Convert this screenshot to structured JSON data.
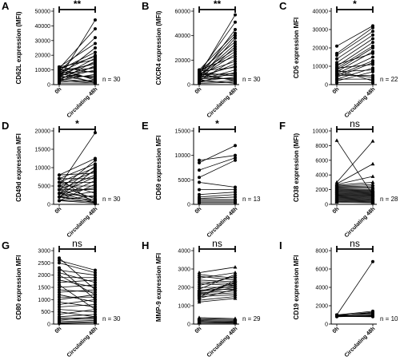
{
  "chart_data": [
    {
      "panel": "A",
      "type": "line",
      "ylabel": "CD62L expression (MFI)",
      "ylim": [
        0,
        50000
      ],
      "yticks": [
        0,
        10000,
        20000,
        30000,
        40000,
        50000
      ],
      "categories": [
        "0h",
        "Circulating 48h"
      ],
      "significance": "**",
      "n": "n = 30",
      "marker": "circle",
      "pairs": [
        [
          4000,
          44000
        ],
        [
          11000,
          38000
        ],
        [
          9000,
          32000
        ],
        [
          12000,
          28000
        ],
        [
          6000,
          25000
        ],
        [
          10000,
          22000
        ],
        [
          8000,
          20000
        ],
        [
          11000,
          19000
        ],
        [
          5000,
          18000
        ],
        [
          12000,
          17000
        ],
        [
          3000,
          16000
        ],
        [
          7000,
          15000
        ],
        [
          9000,
          14000
        ],
        [
          2000,
          13000
        ],
        [
          6000,
          12000
        ],
        [
          10000,
          11000
        ],
        [
          4000,
          10000
        ],
        [
          8000,
          9000
        ],
        [
          12000,
          8000
        ],
        [
          3000,
          7000
        ],
        [
          5000,
          6000
        ],
        [
          7000,
          5000
        ],
        [
          9000,
          4000
        ],
        [
          2000,
          3000
        ],
        [
          11000,
          3000
        ],
        [
          6000,
          2000
        ],
        [
          4000,
          1500
        ],
        [
          8000,
          1200
        ],
        [
          1000,
          1000
        ],
        [
          3000,
          800
        ]
      ]
    },
    {
      "panel": "B",
      "type": "line",
      "ylabel": "CXCR4 expression (MFI)",
      "ylim": [
        0,
        60000
      ],
      "yticks": [
        0,
        20000,
        40000,
        60000
      ],
      "categories": [
        "0h",
        "Circulating 48h"
      ],
      "significance": "**",
      "n": "n = 30",
      "marker": "circle",
      "pairs": [
        [
          8000,
          57000
        ],
        [
          10000,
          51000
        ],
        [
          6000,
          45000
        ],
        [
          12000,
          42000
        ],
        [
          9000,
          40000
        ],
        [
          5000,
          38000
        ],
        [
          11000,
          35000
        ],
        [
          7000,
          33000
        ],
        [
          4000,
          31000
        ],
        [
          10000,
          29000
        ],
        [
          8000,
          27000
        ],
        [
          6000,
          25000
        ],
        [
          12000,
          23000
        ],
        [
          3000,
          21000
        ],
        [
          9000,
          19000
        ],
        [
          5000,
          17000
        ],
        [
          7000,
          15000
        ],
        [
          11000,
          14000
        ],
        [
          4000,
          12000
        ],
        [
          2000,
          10000
        ],
        [
          8000,
          9000
        ],
        [
          6000,
          8000
        ],
        [
          10000,
          7000
        ],
        [
          3000,
          6000
        ],
        [
          5000,
          5000
        ],
        [
          7000,
          4000
        ],
        [
          2000,
          3000
        ],
        [
          9000,
          3000
        ],
        [
          1000,
          2000
        ],
        [
          4000,
          1000
        ]
      ]
    },
    {
      "panel": "C",
      "type": "line",
      "ylabel": "CD5 expression MFI",
      "ylim": [
        0,
        40000
      ],
      "yticks": [
        0,
        10000,
        20000,
        30000,
        40000
      ],
      "categories": [
        "0h",
        "Circulating 48h"
      ],
      "significance": "*",
      "n": "n = 22",
      "marker": "circle",
      "pairs": [
        [
          21000,
          32000
        ],
        [
          17000,
          31000
        ],
        [
          16000,
          29000
        ],
        [
          14000,
          27000
        ],
        [
          12000,
          25000
        ],
        [
          10000,
          23000
        ],
        [
          9000,
          21000
        ],
        [
          8000,
          20000
        ],
        [
          7000,
          18000
        ],
        [
          11000,
          17000
        ],
        [
          6000,
          15000
        ],
        [
          5000,
          13000
        ],
        [
          4000,
          12000
        ],
        [
          9000,
          11000
        ],
        [
          3000,
          9000
        ],
        [
          7000,
          8000
        ],
        [
          2000,
          7000
        ],
        [
          5000,
          5000
        ],
        [
          6000,
          4000
        ],
        [
          3000,
          3000
        ],
        [
          8000,
          2000
        ],
        [
          1000,
          1000
        ]
      ]
    },
    {
      "panel": "D",
      "type": "line",
      "ylabel": "CD49d expression MFI",
      "ylim": [
        0,
        20000
      ],
      "yticks": [
        0,
        5000,
        10000,
        15000,
        20000
      ],
      "categories": [
        "0h",
        "Circulating 48h"
      ],
      "significance": "*",
      "n": "n = 30",
      "marker": "circle",
      "pairs": [
        [
          5000,
          19500
        ],
        [
          8000,
          12500
        ],
        [
          4000,
          12000
        ],
        [
          7000,
          11000
        ],
        [
          3000,
          10500
        ],
        [
          6000,
          10000
        ],
        [
          2000,
          9500
        ],
        [
          5000,
          9000
        ],
        [
          8000,
          8500
        ],
        [
          4000,
          8000
        ],
        [
          3000,
          7500
        ],
        [
          7000,
          7000
        ],
        [
          2000,
          6500
        ],
        [
          6000,
          6000
        ],
        [
          1000,
          5500
        ],
        [
          5000,
          5000
        ],
        [
          3000,
          4500
        ],
        [
          4000,
          4000
        ],
        [
          2000,
          3500
        ],
        [
          6000,
          3000
        ],
        [
          1000,
          2500
        ],
        [
          3000,
          2000
        ],
        [
          5000,
          1500
        ],
        [
          2000,
          1200
        ],
        [
          4000,
          1000
        ],
        [
          1000,
          800
        ],
        [
          3000,
          600
        ],
        [
          2000,
          400
        ],
        [
          1000,
          300
        ],
        [
          7000,
          200
        ]
      ]
    },
    {
      "panel": "E",
      "type": "line",
      "ylabel": "CD69 expression MFI",
      "ylim": [
        0,
        15000
      ],
      "yticks": [
        0,
        5000,
        10000,
        15000
      ],
      "categories": [
        "0h",
        "Circulating 48h"
      ],
      "significance": "*",
      "n": "n = 13",
      "marker": "circle",
      "pairs": [
        [
          8500,
          12000
        ],
        [
          9000,
          10000
        ],
        [
          7000,
          9500
        ],
        [
          5500,
          9000
        ],
        [
          4500,
          3500
        ],
        [
          3000,
          3000
        ],
        [
          2000,
          2500
        ],
        [
          1500,
          2000
        ],
        [
          1200,
          1500
        ],
        [
          1000,
          1000
        ],
        [
          800,
          800
        ],
        [
          500,
          500
        ],
        [
          300,
          300
        ]
      ]
    },
    {
      "panel": "F",
      "type": "line",
      "ylabel": "CD38 expression (MFI)",
      "ylim": [
        0,
        10000
      ],
      "yticks": [
        0,
        2000,
        4000,
        6000,
        8000,
        10000
      ],
      "categories": [
        "0h",
        "Circulating 48h"
      ],
      "significance": "ns",
      "n": "n = 28",
      "marker": "triangle",
      "pairs": [
        [
          8700,
          1300
        ],
        [
          3000,
          8600
        ],
        [
          2800,
          5500
        ],
        [
          2700,
          3800
        ],
        [
          2600,
          3000
        ],
        [
          2500,
          2700
        ],
        [
          2400,
          2500
        ],
        [
          2300,
          2300
        ],
        [
          2200,
          2200
        ],
        [
          2100,
          2000
        ],
        [
          2000,
          1900
        ],
        [
          1900,
          1800
        ],
        [
          1800,
          1700
        ],
        [
          1700,
          1600
        ],
        [
          1600,
          1500
        ],
        [
          1500,
          1400
        ],
        [
          1400,
          1300
        ],
        [
          1300,
          1200
        ],
        [
          1200,
          1100
        ],
        [
          1100,
          1000
        ],
        [
          1000,
          900
        ],
        [
          900,
          800
        ],
        [
          800,
          700
        ],
        [
          700,
          600
        ],
        [
          600,
          500
        ],
        [
          500,
          400
        ],
        [
          400,
          300
        ],
        [
          300,
          200
        ]
      ]
    },
    {
      "panel": "G",
      "type": "line",
      "ylabel": "CD80 expression MFI",
      "ylim": [
        0,
        3000
      ],
      "yticks": [
        0,
        500,
        1000,
        1500,
        2000,
        2500,
        3000
      ],
      "categories": [
        "0h",
        "Circulating 48h"
      ],
      "significance": "ns",
      "n": "n = 30",
      "marker": "circle",
      "pairs": [
        [
          2700,
          1400
        ],
        [
          2600,
          2200
        ],
        [
          2500,
          2100
        ],
        [
          2300,
          1000
        ],
        [
          2200,
          2000
        ],
        [
          2100,
          1700
        ],
        [
          2000,
          1200
        ],
        [
          1900,
          1900
        ],
        [
          1800,
          1500
        ],
        [
          1700,
          1800
        ],
        [
          1600,
          600
        ],
        [
          1500,
          1600
        ],
        [
          1400,
          1300
        ],
        [
          1300,
          1400
        ],
        [
          1200,
          900
        ],
        [
          1100,
          1100
        ],
        [
          1000,
          1200
        ],
        [
          900,
          700
        ],
        [
          800,
          1000
        ],
        [
          700,
          800
        ],
        [
          600,
          500
        ],
        [
          500,
          300
        ],
        [
          400,
          600
        ],
        [
          300,
          400
        ],
        [
          250,
          250
        ],
        [
          200,
          200
        ],
        [
          150,
          300
        ],
        [
          100,
          150
        ],
        [
          50,
          100
        ],
        [
          30,
          50
        ]
      ]
    },
    {
      "panel": "H",
      "type": "line",
      "ylabel": "MMP-9 expression MFI",
      "ylim": [
        0,
        4000
      ],
      "yticks": [
        0,
        1000,
        2000,
        3000,
        4000
      ],
      "categories": [
        "0h",
        "Circulating 48h"
      ],
      "significance": "ns",
      "n": "n = 29",
      "marker": "triangle",
      "pairs": [
        [
          2800,
          3100
        ],
        [
          2700,
          2500
        ],
        [
          2600,
          2400
        ],
        [
          2500,
          2800
        ],
        [
          2400,
          2300
        ],
        [
          2300,
          2200
        ],
        [
          2200,
          2100
        ],
        [
          2100,
          2600
        ],
        [
          2000,
          2000
        ],
        [
          1900,
          2700
        ],
        [
          1850,
          1900
        ],
        [
          1800,
          2200
        ],
        [
          1750,
          2100
        ],
        [
          1700,
          1800
        ],
        [
          1650,
          2000
        ],
        [
          1600,
          1700
        ],
        [
          1550,
          2300
        ],
        [
          1500,
          1600
        ],
        [
          1450,
          2400
        ],
        [
          1400,
          1900
        ],
        [
          1300,
          1500
        ],
        [
          1200,
          1400
        ],
        [
          350,
          300
        ],
        [
          300,
          250
        ],
        [
          250,
          200
        ],
        [
          200,
          150
        ],
        [
          150,
          100
        ],
        [
          100,
          80
        ],
        [
          50,
          50
        ]
      ]
    },
    {
      "panel": "I",
      "type": "line",
      "ylabel": "CD19 expression MFI",
      "ylim": [
        0,
        8000
      ],
      "yticks": [
        0,
        2000,
        4000,
        6000,
        8000
      ],
      "categories": [
        "0h",
        "Circulating 48h"
      ],
      "significance": "ns",
      "n": "n = 10",
      "marker": "circle",
      "pairs": [
        [
          1000,
          6800
        ],
        [
          1000,
          1400
        ],
        [
          900,
          1300
        ],
        [
          950,
          1200
        ],
        [
          1000,
          1100
        ],
        [
          850,
          1000
        ],
        [
          900,
          950
        ],
        [
          800,
          900
        ],
        [
          950,
          850
        ],
        [
          850,
          800
        ]
      ]
    }
  ]
}
